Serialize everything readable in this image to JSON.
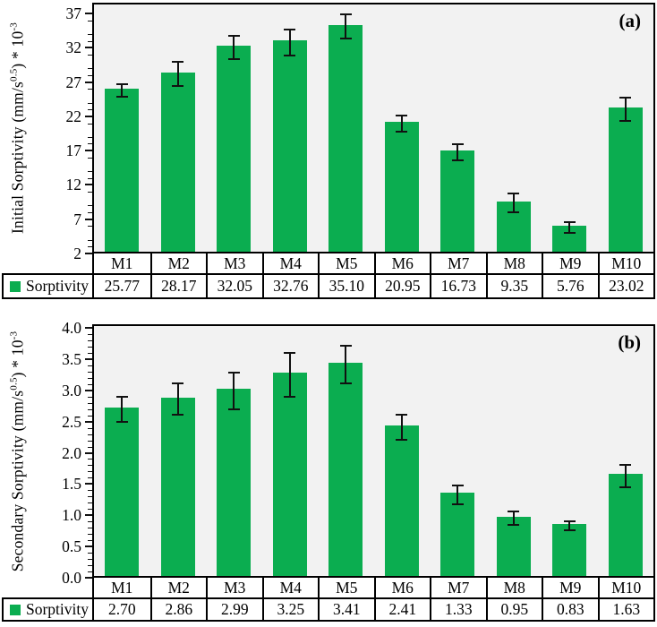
{
  "colors": {
    "bar": "#0BAD50",
    "plot_bg": "#F2F2F2",
    "axis": "#000000",
    "error_bar": "#111111"
  },
  "chart_data": [
    {
      "type": "bar",
      "panel_label": "(a)",
      "ylabel_text": "Initial Sorptivity (mm/s^0.5) * 10^-3",
      "ylabel_parts": {
        "pre": "Initial Sorptivity (mm/s",
        "sup1": "0.5",
        "mid": ") * 10",
        "sup2": "-3"
      },
      "legend_label": "Sorptivity",
      "categories": [
        "M1",
        "M2",
        "M3",
        "M4",
        "M5",
        "M6",
        "M7",
        "M8",
        "M9",
        "M10"
      ],
      "values": [
        25.77,
        28.17,
        32.05,
        32.76,
        35.1,
        20.95,
        16.73,
        9.35,
        5.76,
        23.02
      ],
      "value_labels": [
        "25.77",
        "28.17",
        "32.05",
        "32.76",
        "35.10",
        "20.95",
        "16.73",
        "9.35",
        "5.76",
        "23.02"
      ],
      "errors": [
        0.9,
        1.8,
        1.7,
        1.9,
        1.8,
        1.2,
        1.2,
        1.4,
        0.8,
        1.7
      ],
      "ylim": [
        2,
        37
      ],
      "ytick_values": [
        2,
        7,
        12,
        17,
        22,
        27,
        32,
        37
      ],
      "ytick_labels": [
        "2",
        "7",
        "12",
        "17",
        "22",
        "27",
        "32",
        "37"
      ],
      "minor_tick_step": 1,
      "grid": false,
      "legend_position": "bottom-left"
    },
    {
      "type": "bar",
      "panel_label": "(b)",
      "ylabel_text": "Secondary Sorptivity (mm/s^0.5) * 10^-3",
      "ylabel_parts": {
        "pre": "Secondary Sorptivity (mm/s",
        "sup1": "0.5",
        "mid": ") * 10",
        "sup2": "-3"
      },
      "legend_label": "Sorptivity",
      "categories": [
        "M1",
        "M2",
        "M3",
        "M4",
        "M5",
        "M6",
        "M7",
        "M8",
        "M9",
        "M10"
      ],
      "values": [
        2.7,
        2.86,
        2.99,
        3.25,
        3.41,
        2.41,
        1.33,
        0.95,
        0.83,
        1.63
      ],
      "value_labels": [
        "2.70",
        "2.86",
        "2.99",
        "3.25",
        "3.41",
        "2.41",
        "1.33",
        "0.95",
        "0.83",
        "1.63"
      ],
      "errors": [
        0.2,
        0.25,
        0.3,
        0.35,
        0.3,
        0.2,
        0.15,
        0.11,
        0.07,
        0.18
      ],
      "ylim": [
        0,
        4
      ],
      "ytick_values": [
        0,
        0.5,
        1.0,
        1.5,
        2.0,
        2.5,
        3.0,
        3.5,
        4.0
      ],
      "ytick_labels": [
        "0.0",
        "0.5",
        "1.0",
        "1.5",
        "2.0",
        "2.5",
        "3.0",
        "3.5",
        "4.0"
      ],
      "minor_tick_step": 0.1,
      "grid": false,
      "legend_position": "bottom-left"
    }
  ]
}
